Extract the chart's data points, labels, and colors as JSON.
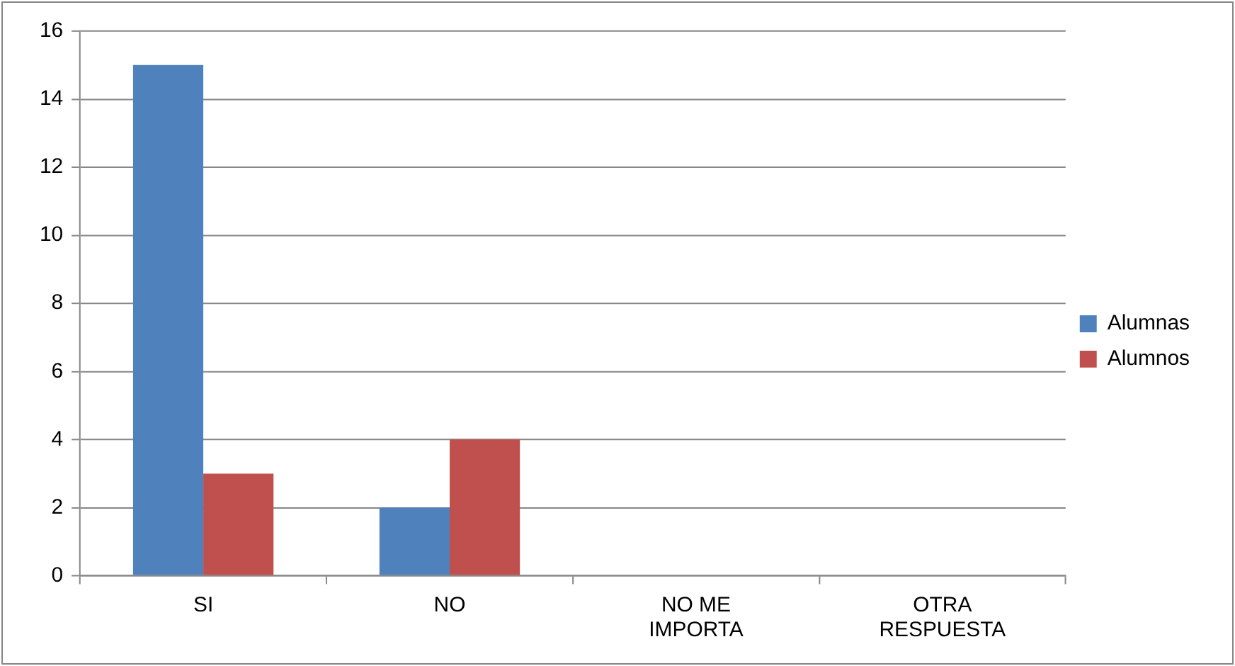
{
  "chart_data": {
    "type": "bar",
    "categories": [
      "SI",
      "NO",
      "NO ME IMPORTA",
      "OTRA RESPUESTA"
    ],
    "series": [
      {
        "name": "Alumnas",
        "color": "#4f81bd",
        "values": [
          15,
          2,
          0,
          0
        ]
      },
      {
        "name": "Alumnos",
        "color": "#c0504d",
        "values": [
          3,
          4,
          0,
          0
        ]
      }
    ],
    "ylim": [
      0,
      16
    ],
    "yticks": [
      0,
      2,
      4,
      6,
      8,
      10,
      12,
      14,
      16
    ],
    "grid": "y",
    "legend": "right"
  }
}
